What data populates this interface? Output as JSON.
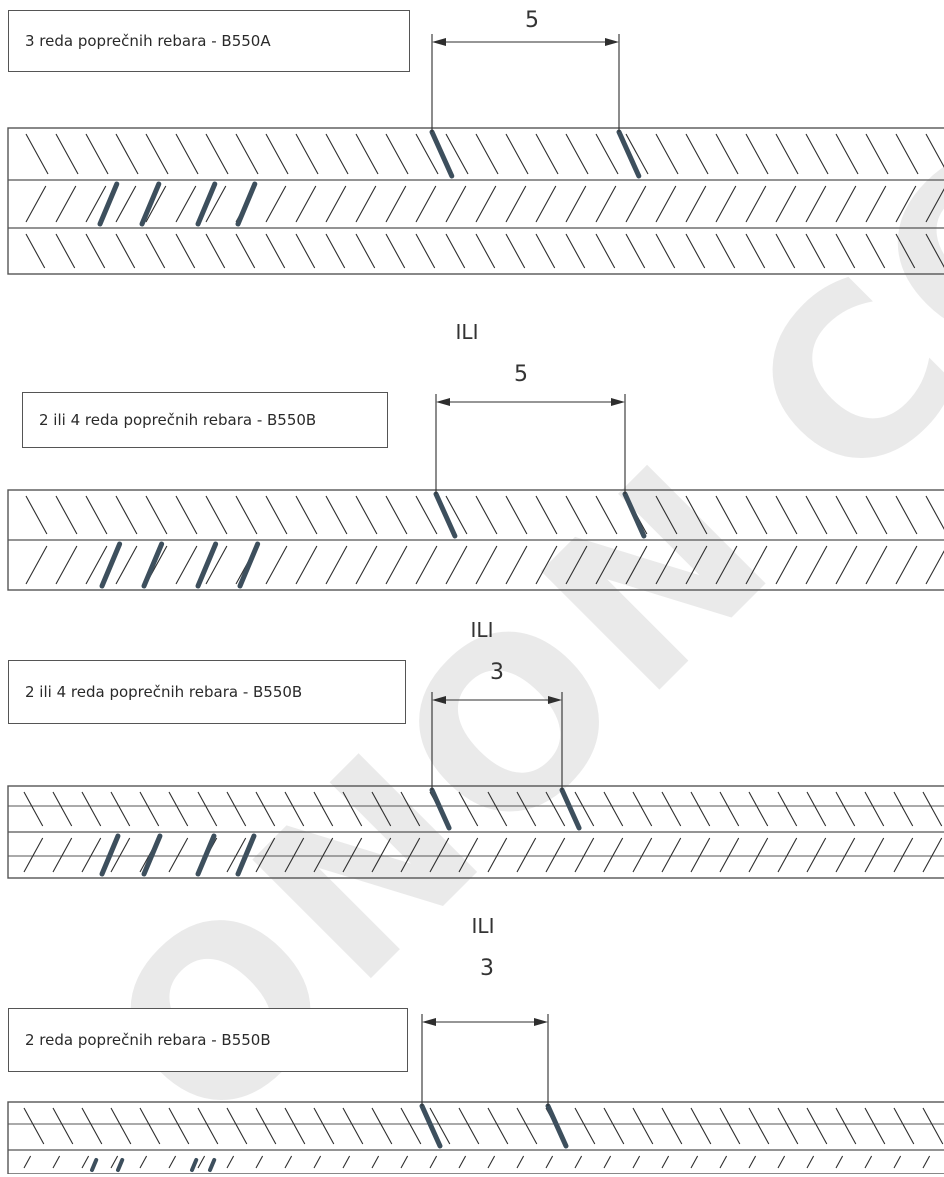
{
  "watermark": "ONON COP",
  "separator_text": "ILI",
  "colors": {
    "line": "#2e2e2e",
    "marker": "#3d4f5d",
    "frame": "#555555"
  },
  "diagrams": [
    {
      "label": "3 reda poprečnih rebara - B550A",
      "dimension": "5"
    },
    {
      "label": "2 ili 4 reda poprečnih rebara - B550B",
      "dimension": "5"
    },
    {
      "label": "2 ili 4 reda poprečnih rebara - B550B",
      "dimension": "3"
    },
    {
      "label": "2 reda poprečnih rebara - B550B",
      "dimension": "3"
    }
  ]
}
